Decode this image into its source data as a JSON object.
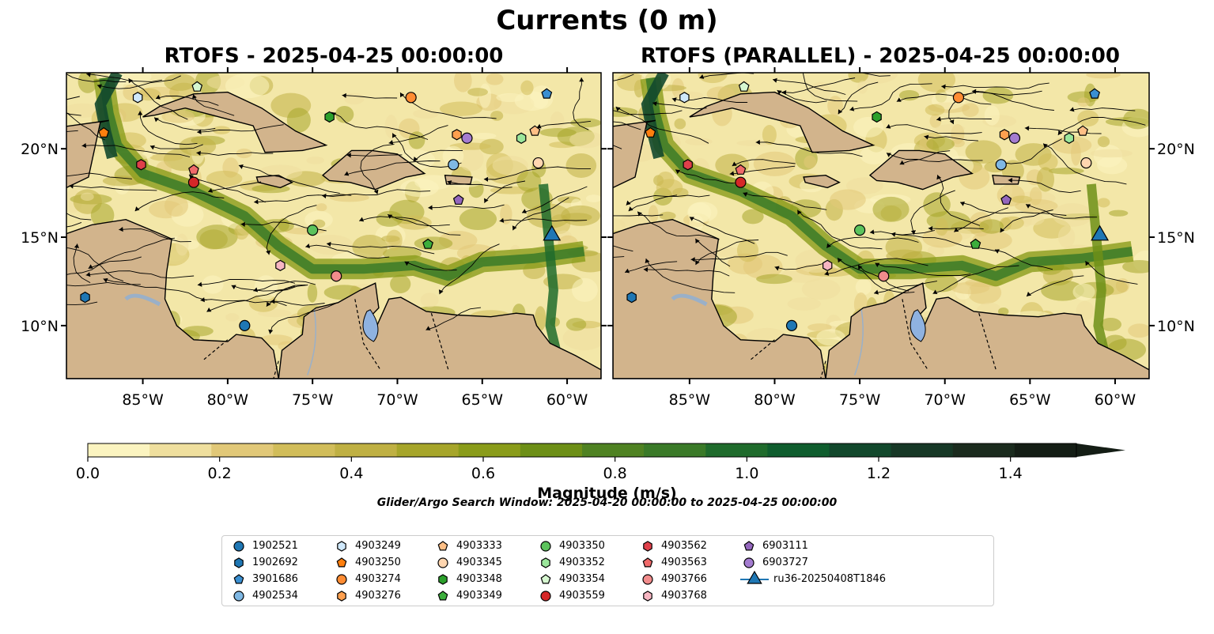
{
  "suptitle": "Currents (0 m)",
  "colorbar": {
    "label": "Magnitude (m/s)",
    "ticks": [
      "0.0",
      "0.2",
      "0.4",
      "0.6",
      "0.8",
      "1.0",
      "1.2",
      "1.4"
    ],
    "levels": [
      0,
      0.1,
      0.2,
      0.3,
      0.4,
      0.5,
      0.6,
      0.7,
      0.8,
      0.9,
      1.0,
      1.1,
      1.2,
      1.3,
      1.4,
      1.5
    ],
    "colors": [
      "#fbf4c0",
      "#efdf9e",
      "#e1c878",
      "#d1bd5a",
      "#bfb043",
      "#a6a52a",
      "#8a9c1a",
      "#6d8f17",
      "#4f8222",
      "#3a7a28",
      "#1f6b2c",
      "#0f5d2e",
      "#12482c",
      "#173826",
      "#1b2b1e",
      "#141d15"
    ],
    "extend": "max"
  },
  "search_window": "Glider/Argo Search Window: 2025-04-20 00:00:00 to 2025-04-25 00:00:00",
  "chart_data": [
    {
      "type": "streamplot-map",
      "title": "RTOFS - 2025-04-25 00:00:00",
      "xlim": [
        -89.5,
        -58
      ],
      "ylim": [
        7,
        24.3
      ],
      "xticks": [
        "85°W",
        "80°W",
        "75°W",
        "70°W",
        "65°W",
        "60°W"
      ],
      "yticks": [
        "20°N",
        "15°N",
        "10°N"
      ],
      "ytick_side": "left",
      "markers": [
        {
          "id": "1902692",
          "lon": -88.4,
          "lat": 11.6
        },
        {
          "id": "3901686",
          "lon": -61.2,
          "lat": 23.1
        },
        {
          "id": "4902534",
          "lon": -66.7,
          "lat": 19.1
        },
        {
          "id": "1902521",
          "lon": -79.0,
          "lat": 10.0
        },
        {
          "id": "4903249",
          "lon": -85.3,
          "lat": 22.9
        },
        {
          "id": "4903250",
          "lon": -87.3,
          "lat": 20.9
        },
        {
          "id": "4903274",
          "lon": -69.2,
          "lat": 22.9
        },
        {
          "id": "4903276",
          "lon": -66.5,
          "lat": 20.8
        },
        {
          "id": "4903333",
          "lon": -61.9,
          "lat": 21.0
        },
        {
          "id": "4903345",
          "lon": -61.7,
          "lat": 19.2
        },
        {
          "id": "4903348",
          "lon": -74.0,
          "lat": 21.8
        },
        {
          "id": "4903349",
          "lon": -68.2,
          "lat": 14.6
        },
        {
          "id": "4903350",
          "lon": -75.0,
          "lat": 15.4
        },
        {
          "id": "4903352",
          "lon": -62.7,
          "lat": 20.6
        },
        {
          "id": "4903354",
          "lon": -81.8,
          "lat": 23.5
        },
        {
          "id": "4903559",
          "lon": -82.0,
          "lat": 18.1
        },
        {
          "id": "4903562",
          "lon": -85.1,
          "lat": 19.1
        },
        {
          "id": "4903563",
          "lon": -82.0,
          "lat": 18.8
        },
        {
          "id": "4903766",
          "lon": -73.6,
          "lat": 12.8
        },
        {
          "id": "4903768",
          "lon": -76.9,
          "lat": 13.4
        },
        {
          "id": "6903111",
          "lon": -66.4,
          "lat": 17.1
        },
        {
          "id": "6903727",
          "lon": -65.9,
          "lat": 20.6
        },
        {
          "id": "ru36-20250408T1846",
          "lon": -60.9,
          "lat": 15.1
        }
      ]
    },
    {
      "type": "streamplot-map",
      "title": "RTOFS (PARALLEL) - 2025-04-25 00:00:00",
      "xlim": [
        -89.5,
        -58
      ],
      "ylim": [
        7,
        24.3
      ],
      "xticks": [
        "85°W",
        "80°W",
        "75°W",
        "70°W",
        "65°W",
        "60°W"
      ],
      "yticks": [
        "20°N",
        "15°N",
        "10°N"
      ],
      "ytick_side": "right",
      "markers": [
        {
          "id": "1902692",
          "lon": -88.4,
          "lat": 11.6
        },
        {
          "id": "3901686",
          "lon": -61.2,
          "lat": 23.1
        },
        {
          "id": "4902534",
          "lon": -66.7,
          "lat": 19.1
        },
        {
          "id": "1902521",
          "lon": -79.0,
          "lat": 10.0
        },
        {
          "id": "4903249",
          "lon": -85.3,
          "lat": 22.9
        },
        {
          "id": "4903250",
          "lon": -87.3,
          "lat": 20.9
        },
        {
          "id": "4903274",
          "lon": -69.2,
          "lat": 22.9
        },
        {
          "id": "4903276",
          "lon": -66.5,
          "lat": 20.8
        },
        {
          "id": "4903333",
          "lon": -61.9,
          "lat": 21.0
        },
        {
          "id": "4903345",
          "lon": -61.7,
          "lat": 19.2
        },
        {
          "id": "4903348",
          "lon": -74.0,
          "lat": 21.8
        },
        {
          "id": "4903349",
          "lon": -68.2,
          "lat": 14.6
        },
        {
          "id": "4903350",
          "lon": -75.0,
          "lat": 15.4
        },
        {
          "id": "4903352",
          "lon": -62.7,
          "lat": 20.6
        },
        {
          "id": "4903354",
          "lon": -81.8,
          "lat": 23.5
        },
        {
          "id": "4903559",
          "lon": -82.0,
          "lat": 18.1
        },
        {
          "id": "4903562",
          "lon": -85.1,
          "lat": 19.1
        },
        {
          "id": "4903563",
          "lon": -82.0,
          "lat": 18.8
        },
        {
          "id": "4903766",
          "lon": -73.6,
          "lat": 12.8
        },
        {
          "id": "4903768",
          "lon": -76.9,
          "lat": 13.4
        },
        {
          "id": "6903111",
          "lon": -66.4,
          "lat": 17.1
        },
        {
          "id": "6903727",
          "lon": -65.9,
          "lat": 20.6
        },
        {
          "id": "ru36-20250408T1846",
          "lon": -60.9,
          "lat": 15.1
        }
      ]
    }
  ],
  "legend": [
    {
      "id": "1902521",
      "shape": "circle",
      "color": "#1f77b4"
    },
    {
      "id": "1902692",
      "shape": "hexagon",
      "color": "#1f77b4"
    },
    {
      "id": "3901686",
      "shape": "pentagon",
      "color": "#3a8fd1"
    },
    {
      "id": "4902534",
      "shape": "circle",
      "color": "#7fb8e4"
    },
    {
      "id": "4903249",
      "shape": "hexagon",
      "color": "#cfe8fb"
    },
    {
      "id": "4903250",
      "shape": "pentagon",
      "color": "#ff7f0e"
    },
    {
      "id": "4903274",
      "shape": "circle",
      "color": "#ff8c33"
    },
    {
      "id": "4903276",
      "shape": "hexagon",
      "color": "#ffa04f"
    },
    {
      "id": "4903333",
      "shape": "pentagon",
      "color": "#ffbf86"
    },
    {
      "id": "4903345",
      "shape": "circle",
      "color": "#ffd6b0"
    },
    {
      "id": "4903348",
      "shape": "hexagon",
      "color": "#2ca02c"
    },
    {
      "id": "4903349",
      "shape": "pentagon",
      "color": "#3cae3c"
    },
    {
      "id": "4903350",
      "shape": "circle",
      "color": "#5cc35c"
    },
    {
      "id": "4903352",
      "shape": "hexagon",
      "color": "#9be69b"
    },
    {
      "id": "4903354",
      "shape": "pentagon",
      "color": "#d6f7d0"
    },
    {
      "id": "4903559",
      "shape": "circle",
      "color": "#d62728"
    },
    {
      "id": "4903562",
      "shape": "hexagon",
      "color": "#e0404a"
    },
    {
      "id": "4903563",
      "shape": "pentagon",
      "color": "#f06a6a"
    },
    {
      "id": "4903766",
      "shape": "circle",
      "color": "#f28c8c"
    },
    {
      "id": "4903768",
      "shape": "hexagon",
      "color": "#f7b6c2"
    },
    {
      "id": "6903111",
      "shape": "pentagon",
      "color": "#9467bd"
    },
    {
      "id": "6903727",
      "shape": "circle",
      "color": "#a47cd0"
    },
    {
      "id": "ru36-20250408T1846",
      "shape": "triangle",
      "color": "#1f77b4"
    }
  ]
}
